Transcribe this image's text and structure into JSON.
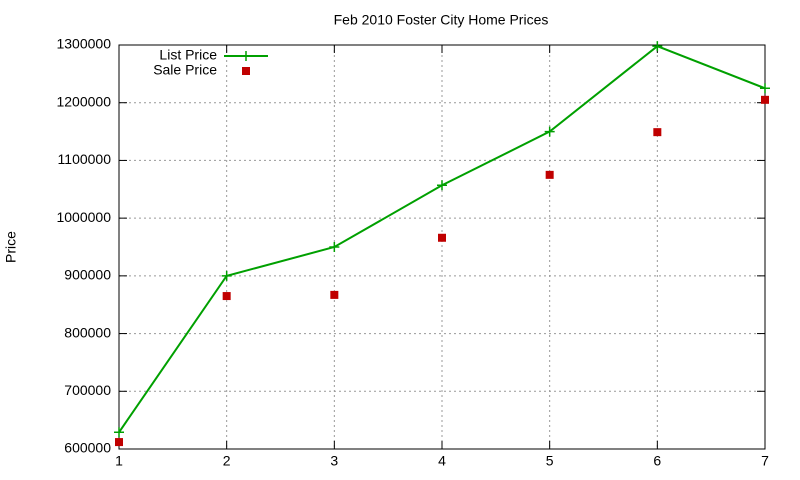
{
  "chart_data": {
    "type": "line",
    "title": "Feb 2010 Foster City Home Prices",
    "y_label": "Price",
    "x": [
      1,
      2,
      3,
      4,
      5,
      6,
      7
    ],
    "series": [
      {
        "name": "List Price",
        "color": "#00a000",
        "style": "linespoints",
        "values": [
          629000,
          900000,
          950000,
          1057000,
          1150000,
          1298000,
          1225000
        ]
      },
      {
        "name": "Sale Price",
        "color": "#c00000",
        "style": "points",
        "values": [
          612000,
          865000,
          867000,
          966000,
          1075000,
          1149000,
          1205000
        ]
      }
    ],
    "xlim": [
      1,
      7
    ],
    "xticks": [
      1,
      2,
      3,
      4,
      5,
      6,
      7
    ],
    "ylim": [
      600000,
      1300000
    ],
    "yticks": [
      600000,
      700000,
      800000,
      900000,
      1000000,
      1100000,
      1200000,
      1300000
    ],
    "grid": true,
    "legend": "top-left"
  }
}
